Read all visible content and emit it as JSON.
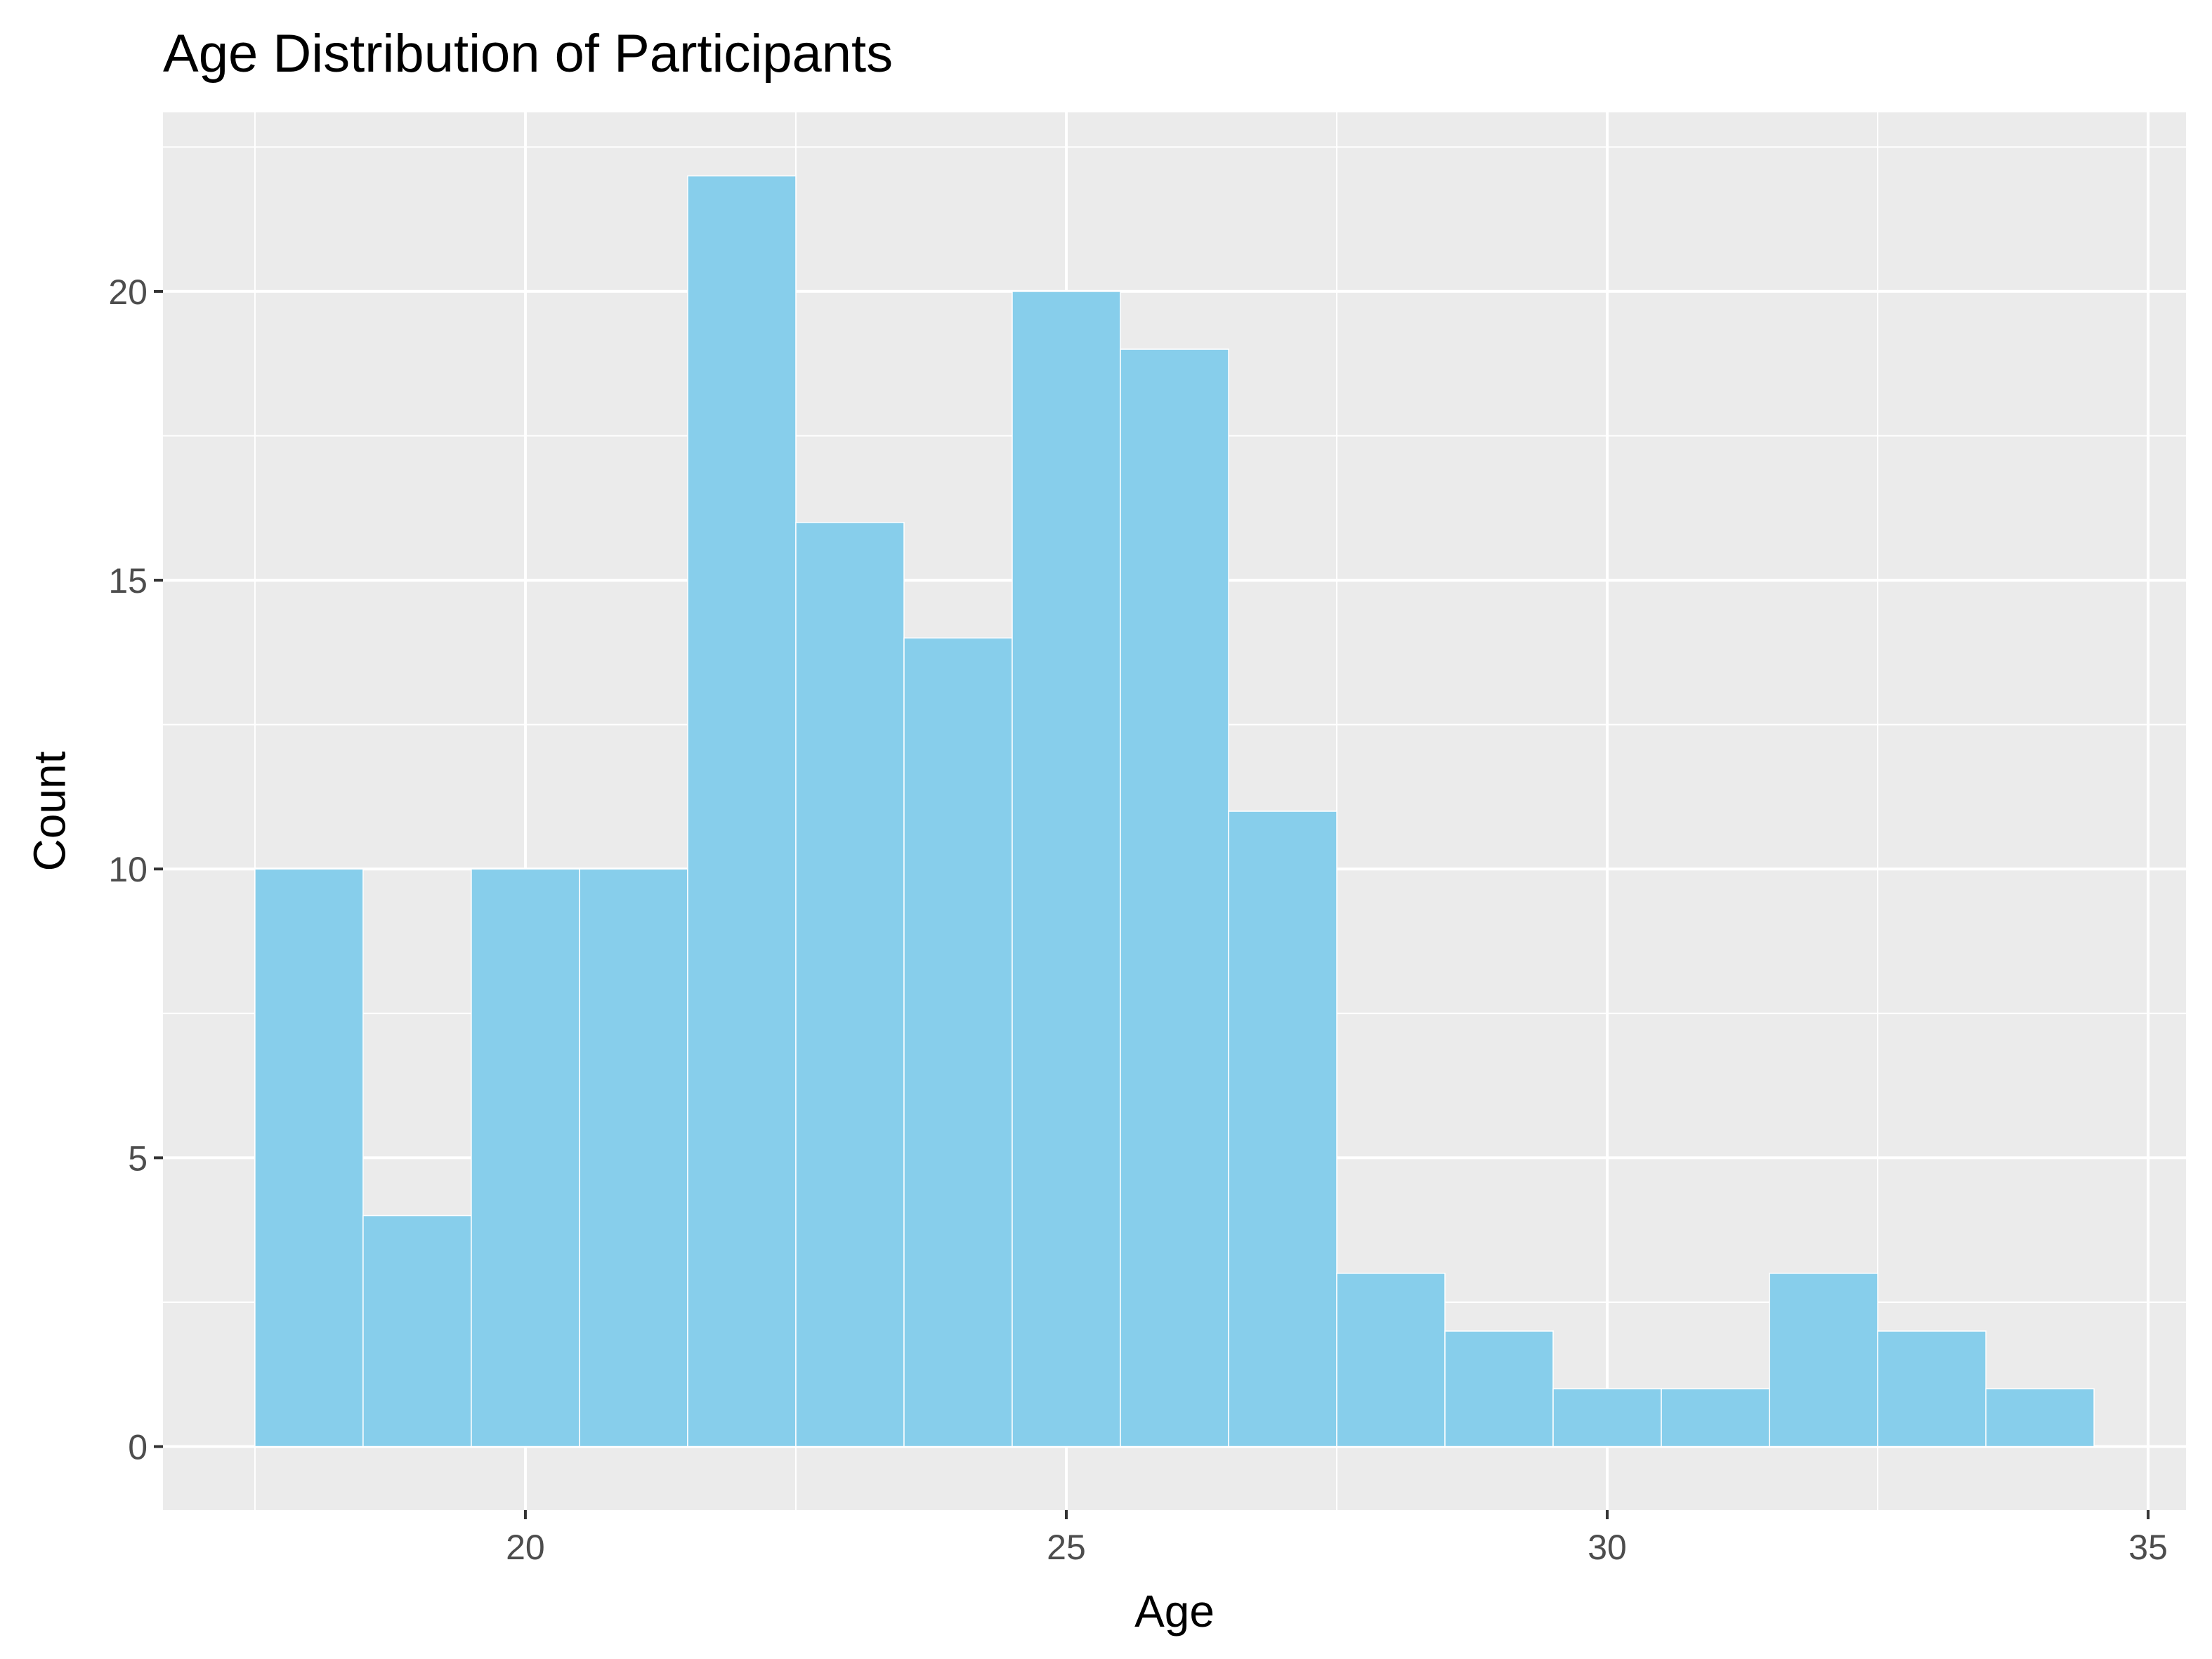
{
  "chart_data": {
    "type": "bar",
    "title": "Age Distribution of Participants",
    "xlabel": "Age",
    "ylabel": "Count",
    "bin_width": 1,
    "bins": [
      {
        "start": 17.5,
        "end": 18.5,
        "count": 10
      },
      {
        "start": 18.5,
        "end": 19.5,
        "count": 4
      },
      {
        "start": 19.5,
        "end": 20.5,
        "count": 10
      },
      {
        "start": 20.5,
        "end": 21.5,
        "count": 10
      },
      {
        "start": 21.5,
        "end": 22.5,
        "count": 22
      },
      {
        "start": 22.5,
        "end": 23.5,
        "count": 16
      },
      {
        "start": 23.5,
        "end": 24.5,
        "count": 14
      },
      {
        "start": 24.5,
        "end": 25.5,
        "count": 20
      },
      {
        "start": 25.5,
        "end": 26.5,
        "count": 19
      },
      {
        "start": 26.5,
        "end": 27.5,
        "count": 11
      },
      {
        "start": 27.5,
        "end": 28.5,
        "count": 3
      },
      {
        "start": 28.5,
        "end": 29.5,
        "count": 2
      },
      {
        "start": 29.5,
        "end": 30.5,
        "count": 1
      },
      {
        "start": 30.5,
        "end": 31.5,
        "count": 1
      },
      {
        "start": 31.5,
        "end": 32.5,
        "count": 3
      },
      {
        "start": 32.5,
        "end": 33.5,
        "count": 2
      },
      {
        "start": 33.5,
        "end": 34.5,
        "count": 1
      }
    ],
    "xlim": [
      16.65,
      35.35
    ],
    "ylim": [
      -1.1,
      23.1
    ],
    "x_ticks": [
      20,
      25,
      30,
      35
    ],
    "x_tick_labels": [
      "20",
      "25",
      "30",
      "35"
    ],
    "x_minor_ticks": [
      17.5,
      22.5,
      27.5,
      32.5
    ],
    "y_ticks": [
      0,
      5,
      10,
      15,
      20
    ],
    "y_tick_labels": [
      "0",
      "5",
      "10",
      "15",
      "20"
    ],
    "y_minor_ticks": [
      2.5,
      7.5,
      12.5,
      17.5,
      22.5
    ],
    "grid": true,
    "legend": "none",
    "colors": {
      "bar_fill": "#87CEEB",
      "bar_outline": "#ffffff",
      "panel_background": "#EBEBEB",
      "grid": "#ffffff",
      "tick_label": "#4d4d4d",
      "tick_mark": "#333333"
    }
  }
}
